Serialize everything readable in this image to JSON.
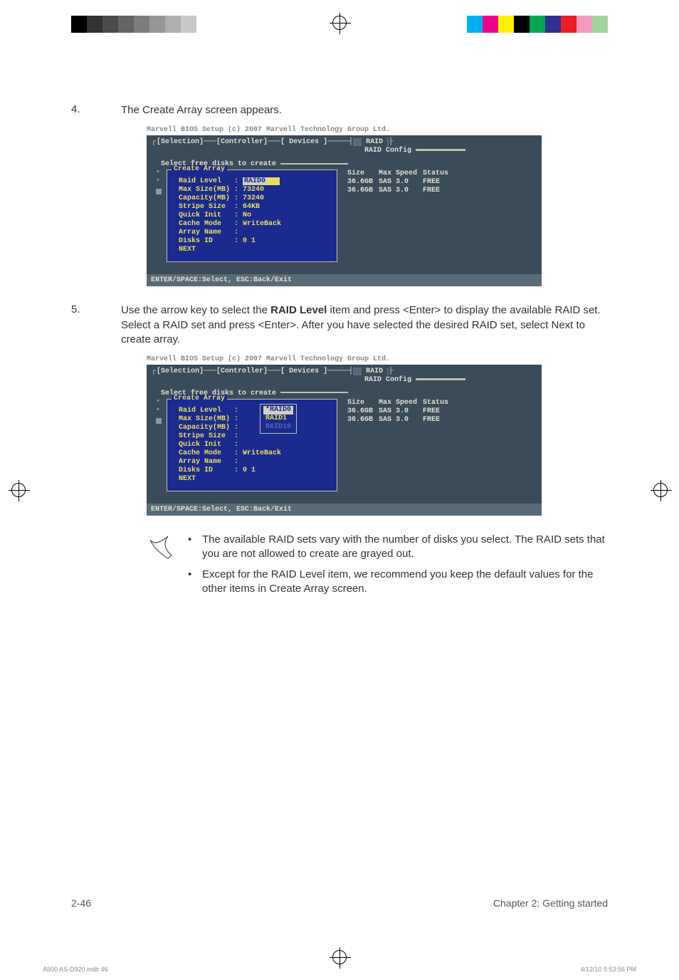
{
  "reg_colors_left": [
    "#000000",
    "#323232",
    "#4b4b4b",
    "#646464",
    "#7d7d7d",
    "#969696",
    "#afafaf",
    "#c8c8c8"
  ],
  "reg_colors_right": [
    "#00aeef",
    "#ec008c",
    "#fff200",
    "#000000",
    "#00a651",
    "#2e3192",
    "#ed1c24",
    "#f49ac1",
    "#a3d39c"
  ],
  "step4_num": "4.",
  "step4_text": "The Create Array screen appears.",
  "step5_num": "5.",
  "step5_text_a": "Use the arrow key to select the ",
  "step5_bold": "RAID Level",
  "step5_text_b": " item and press <Enter> to display the available RAID set. Select a RAID set and press <Enter>. After you have selected the desired RAID set, select Next to create array.",
  "bios_title": "Marvell BIOS Setup (c) 2007 Marvell Technology Group Ltd.",
  "tabs_selection": "[Selection]",
  "tabs_controller": "[Controller]",
  "tabs_devices": "[ Devices ]",
  "tabs_raid": "RAID",
  "raid_config": "RAID Config",
  "select_free": "Select free disks to create",
  "create_array": "Create Array",
  "cfg1": {
    "raid_level_label": "Raid Level   : ",
    "raid_level_value": "RAID0",
    "max_size": "Max Size(MB) : 73240",
    "capacity": "Capacity(MB) : 73240",
    "stripe": "Stripe Size  : 64KB",
    "quick": "Quick Init   : No",
    "cache": "Cache Mode   : WriteBack",
    "array": "Array Name   :",
    "disks": "Disks ID     : 0 1",
    "next": "NEXT"
  },
  "cfg2": {
    "raid_level_label": "Raid Level   :",
    "max_size": "Max Size(MB) :",
    "capacity": "Capacity(MB) :",
    "stripe": "Stripe Size  :",
    "quick": "Quick Init   :",
    "cache": "Cache Mode   : WriteBack",
    "array": "Array Name   :",
    "disks": "Disks ID     : 0 1",
    "next": "NEXT",
    "dd_opt1": "*RAID0",
    "dd_opt2": " RAID1",
    "dd_opt3": " RAID10"
  },
  "disks": {
    "h1": "Size",
    "h2": "Max Speed",
    "h3": "Status",
    "r1c1": "36.6GB",
    "r1c2": "SAS 3.0",
    "r1c3": "FREE",
    "r2c1": "36.6GB",
    "r2c2": "SAS 3.0",
    "r2c3": "FREE"
  },
  "bios_footer": "ENTER/SPACE:Select, ESC:Back/Exit",
  "note1": "The available RAID sets vary with the number of disks you select. The RAID sets that you are not allowed to create are grayed out.",
  "note2": "Except for the RAID Level item, we recommend you keep the default values for the other items in Create Array screen.",
  "page_num": "2-46",
  "chapter": "Chapter 2: Getting started",
  "print_file": "A500 AS-D920.indb   46",
  "print_time": "4/12/10   5:53:56 PM"
}
